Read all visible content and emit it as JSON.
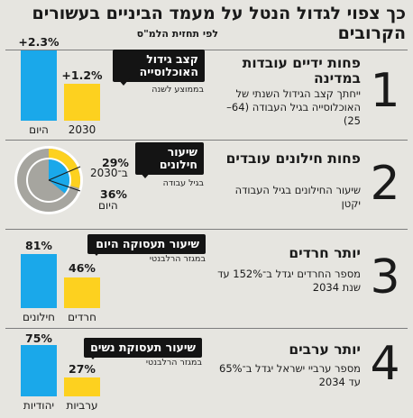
{
  "header": {
    "title": "כך צפוי לגדול הנטל על מעמד הביניים בעשורים הקרובים",
    "subtitle": "לפי תחזית הלמ\"ס"
  },
  "colors": {
    "blue": "#1aa8ea",
    "yellow": "#fdd11f",
    "gray": "#a6a59f"
  },
  "sections": [
    {
      "number": "1",
      "heading": "פחות ידיים עובדות במדינה",
      "body": "ייחתך קצב הגידול השנתי של האוכלוסייה בגיל העבודה (64–25)",
      "callout": "קצב גידול האוכלוסייה",
      "note": "בממוצע לשנה",
      "bars": [
        {
          "label": "היום",
          "value_label": "+2.3%",
          "value": 2.3
        },
        {
          "label": "2030",
          "value_label": "+1.2%",
          "value": 1.2
        }
      ]
    },
    {
      "number": "2",
      "heading": "פחות חילונים עובדים",
      "body": "שיעור החילונים בגיל העבודה יקטן",
      "callout": "שיעור חילונים",
      "note": "בגיל עבודה",
      "pie": {
        "today": {
          "label": "היום",
          "value_label": "36%",
          "value": 36
        },
        "future": {
          "label": "ב־2030",
          "value_label": "29%",
          "value": 29
        }
      }
    },
    {
      "number": "3",
      "heading": "יותר חרדים",
      "body": "מספר החרדים יגדל ב־152% עד שנת 2034",
      "callout": "שיעור תעסוקה היום",
      "note": "במגזר הרלבנטי",
      "bars": [
        {
          "label": "חילונים",
          "value_label": "81%",
          "value": 81
        },
        {
          "label": "חרדים",
          "value_label": "46%",
          "value": 46
        }
      ]
    },
    {
      "number": "4",
      "heading": "יותר ערבים",
      "body": "מספר ערביי ישראל יגדל ב־65% עד 2034",
      "callout": "שיעור תעסוקת נשים",
      "note": "במגזר הרלבנטי",
      "bars": [
        {
          "label": "יהודיות",
          "value_label": "75%",
          "value": 75
        },
        {
          "label": "ערביות",
          "value_label": "27%",
          "value": 27
        }
      ]
    }
  ]
}
